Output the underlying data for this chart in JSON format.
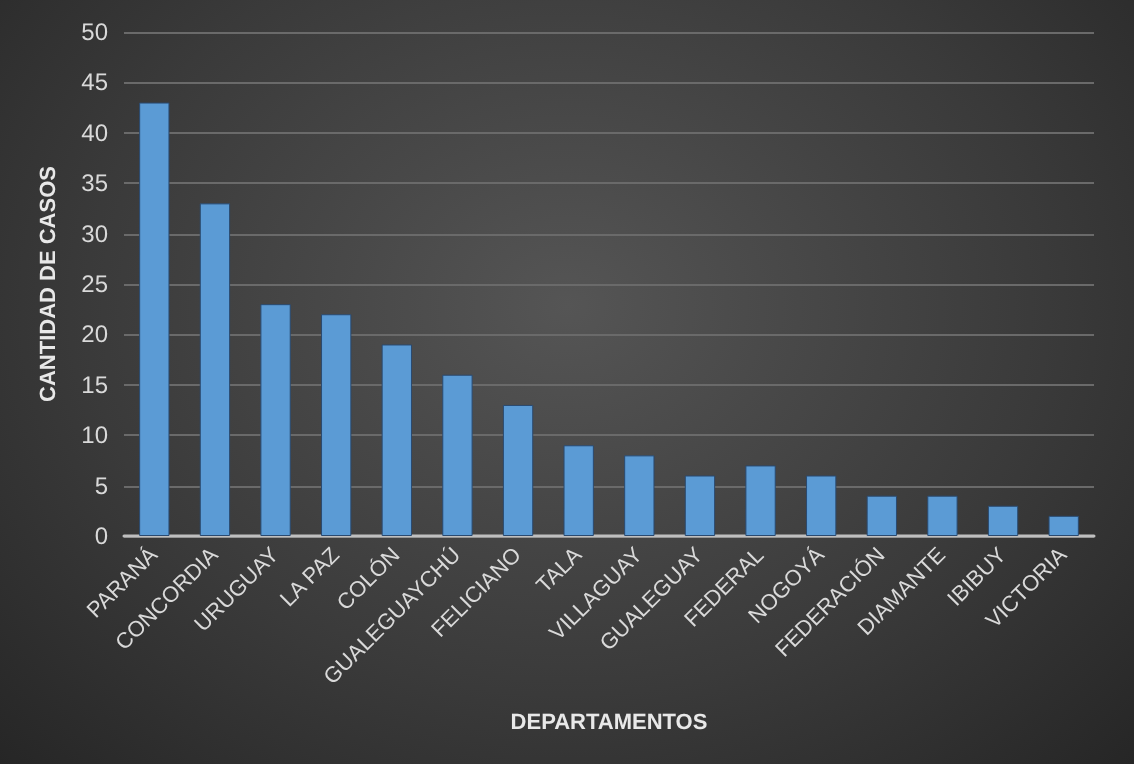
{
  "chart_data": {
    "type": "bar",
    "xlabel": "DEPARTAMENTOS",
    "ylabel": "CANTIDAD DE CASOS",
    "categories": [
      "PARANÁ",
      "CONCORDIA",
      "URUGUAY",
      "LA PAZ",
      "COLÓN",
      "GUALEGUAYCHÚ",
      "FELICIANO",
      "TALA",
      "VILLAGUAY",
      "GUALEGUAY",
      "FEDERAL",
      "NOGOYÁ",
      "FEDERACIÓN",
      "DIAMANTE",
      "IBIBUY",
      "VICTORIA"
    ],
    "values": [
      43,
      33,
      23,
      22,
      19,
      16,
      13,
      9,
      8,
      6,
      7,
      6,
      4,
      4,
      3,
      2
    ],
    "color": "#5b9bd5",
    "ylim": [
      0,
      50
    ],
    "yticks": [
      0,
      5,
      10,
      15,
      20,
      25,
      30,
      35,
      40,
      45,
      50
    ],
    "grid": "y"
  }
}
